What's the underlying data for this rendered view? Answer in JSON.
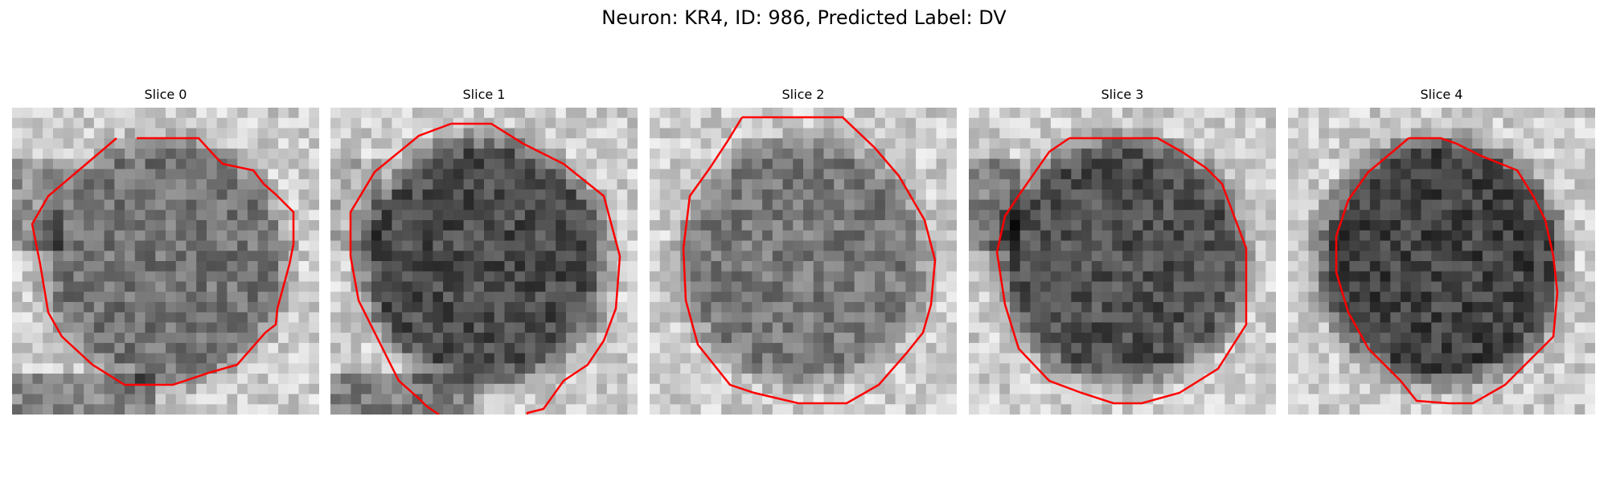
{
  "figure": {
    "title": "Neuron: KR4, ID: 986, Predicted Label: DV",
    "contour_color": "#ff0000"
  },
  "panels": [
    {
      "title": "Slice 0",
      "center_tone": 115,
      "left_dark": 20,
      "bottom_dark": 35
    },
    {
      "title": "Slice 1",
      "center_tone": 75,
      "left_dark": 10,
      "bottom_dark": 40
    },
    {
      "title": "Slice 2",
      "center_tone": 120,
      "left_dark": 0,
      "bottom_dark": 0
    },
    {
      "title": "Slice 3",
      "center_tone": 80,
      "left_dark": 25,
      "bottom_dark": 0
    },
    {
      "title": "Slice 4",
      "center_tone": 65,
      "left_dark": 0,
      "bottom_dark": 0
    }
  ]
}
